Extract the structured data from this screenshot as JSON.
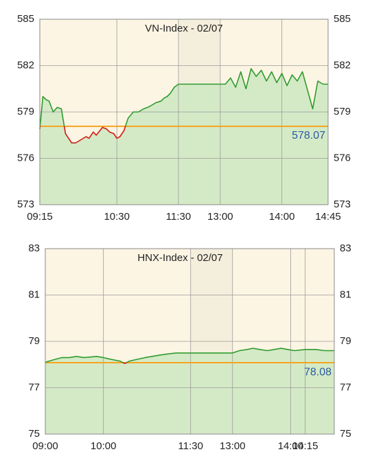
{
  "chart_data": [
    {
      "type": "line",
      "title": "VN-Index - 02/07",
      "x": [
        "09:15",
        "09:18",
        "09:21",
        "09:24",
        "09:28",
        "09:32",
        "09:36",
        "09:40",
        "09:43",
        "09:46",
        "09:50",
        "09:55",
        "10:00",
        "10:03",
        "10:07",
        "10:10",
        "10:16",
        "10:20",
        "10:23",
        "10:27",
        "10:30",
        "10:33",
        "10:37",
        "10:41",
        "10:46",
        "10:51",
        "10:56",
        "11:00",
        "11:03",
        "11:08",
        "11:13",
        "11:16",
        "11:19",
        "11:22",
        "11:26",
        "11:30",
        "13:00",
        "13:05",
        "13:10",
        "13:15",
        "13:20",
        "13:25",
        "13:30",
        "13:35",
        "13:40",
        "13:45",
        "13:50",
        "13:55",
        "14:00",
        "14:05",
        "14:10",
        "14:15",
        "14:20",
        "14:25",
        "14:30",
        "14:35",
        "14:40",
        "14:45"
      ],
      "series": [
        {
          "color": "#2e9b2e",
          "below_color": "#e02020",
          "fill": "#d4eac6",
          "values": [
            577.9,
            580.0,
            579.8,
            579.7,
            579.0,
            579.3,
            579.2,
            577.6,
            577.3,
            577.0,
            577.0,
            577.2,
            577.4,
            577.3,
            577.7,
            577.5,
            578.0,
            577.9,
            577.7,
            577.6,
            577.3,
            577.4,
            577.8,
            578.6,
            579.0,
            579.0,
            579.2,
            579.3,
            579.4,
            579.6,
            579.7,
            579.9,
            580.0,
            580.2,
            580.6,
            580.8,
            580.8,
            580.8,
            581.2,
            580.6,
            581.6,
            580.5,
            581.8,
            581.3,
            581.7,
            581.0,
            581.6,
            580.9,
            581.5,
            580.7,
            581.4,
            581.0,
            581.6,
            580.4,
            579.2,
            581.0,
            580.8,
            580.8
          ]
        }
      ],
      "reference": {
        "value": 578.07,
        "color": "#f5a41e",
        "label_color": "#2a5aa0"
      },
      "break": {
        "start": "11:30",
        "end": "13:00",
        "color": "#f4efdc"
      },
      "xlim": [
        "09:15",
        "14:45"
      ],
      "xticks": [
        "09:15",
        "10:30",
        "11:30",
        "13:00",
        "14:00",
        "14:45"
      ],
      "ylim": [
        573,
        585
      ],
      "yticks": [
        573,
        576,
        579,
        582,
        585
      ],
      "y2ticks": [
        573,
        576,
        579,
        582,
        585
      ],
      "grid": true,
      "background": "#fdf5e4"
    },
    {
      "type": "line",
      "title": "HNX-Index - 02/07",
      "x": [
        "09:00",
        "09:08",
        "09:17",
        "09:25",
        "09:32",
        "09:40",
        "09:53",
        "10:00",
        "10:05",
        "10:11",
        "10:17",
        "10:22",
        "10:27",
        "10:32",
        "10:43",
        "10:50",
        "10:57",
        "11:05",
        "11:15",
        "11:30",
        "13:00",
        "13:07",
        "13:15",
        "13:21",
        "13:28",
        "13:36",
        "13:43",
        "13:50",
        "13:57",
        "14:04",
        "14:15",
        "14:26",
        "14:35",
        "14:45"
      ],
      "series": [
        {
          "color": "#2e9b2e",
          "below_color": "#e02020",
          "fill": "#d4eac6",
          "values": [
            78.1,
            78.2,
            78.3,
            78.3,
            78.35,
            78.3,
            78.35,
            78.3,
            78.25,
            78.2,
            78.15,
            78.05,
            78.15,
            78.2,
            78.3,
            78.35,
            78.4,
            78.45,
            78.5,
            78.5,
            78.5,
            78.6,
            78.65,
            78.7,
            78.65,
            78.6,
            78.65,
            78.7,
            78.65,
            78.6,
            78.65,
            78.65,
            78.6,
            78.6
          ]
        }
      ],
      "reference": {
        "value": 78.08,
        "color": "#f5a41e",
        "label_color": "#2a5aa0"
      },
      "break": {
        "start": "11:30",
        "end": "13:00",
        "color": "#f4efdc"
      },
      "xlim": [
        "09:00",
        "14:45"
      ],
      "xticks": [
        "09:00",
        "10:00",
        "11:30",
        "13:00",
        "14:00",
        "14:15"
      ],
      "ylim": [
        75,
        83
      ],
      "yticks": [
        75,
        77,
        79,
        81,
        83
      ],
      "y2ticks": [
        75,
        77,
        79,
        81,
        83
      ],
      "grid": true,
      "background": "#fdf5e4"
    }
  ]
}
